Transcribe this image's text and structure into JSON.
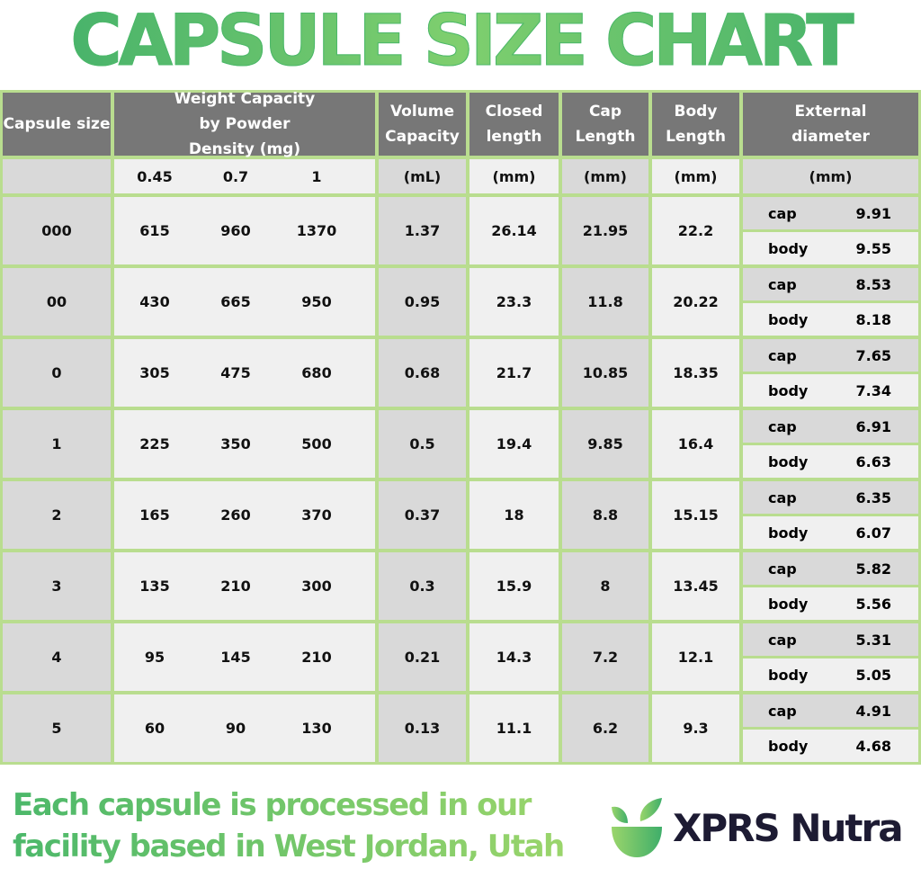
{
  "title": "CAPSULE SIZE CHART",
  "headers": {
    "size": "Capsule size",
    "weight": "Weight Capacity by Powder Density (mg)",
    "volume": "Volume Capacity",
    "closed": "Closed length",
    "cap": "Cap Length",
    "body": "Body Length",
    "ext": "External diameter"
  },
  "units": {
    "densities": [
      "0.45",
      "0.7",
      "1"
    ],
    "volume": "(mL)",
    "closed": "(mm)",
    "cap": "(mm)",
    "body": "(mm)",
    "ext": "(mm)"
  },
  "ext_labels": {
    "cap": "cap",
    "body": "body"
  },
  "rows": [
    {
      "size": "000",
      "w": [
        "615",
        "960",
        "1370"
      ],
      "vol": "1.37",
      "closed": "26.14",
      "cap": "21.95",
      "body": "22.2",
      "ext_cap": "9.91",
      "ext_body": "9.55"
    },
    {
      "size": "00",
      "w": [
        "430",
        "665",
        "950"
      ],
      "vol": "0.95",
      "closed": "23.3",
      "cap": "11.8",
      "body": "20.22",
      "ext_cap": "8.53",
      "ext_body": "8.18"
    },
    {
      "size": "0",
      "w": [
        "305",
        "475",
        "680"
      ],
      "vol": "0.68",
      "closed": "21.7",
      "cap": "10.85",
      "body": "18.35",
      "ext_cap": "7.65",
      "ext_body": "7.34"
    },
    {
      "size": "1",
      "w": [
        "225",
        "350",
        "500"
      ],
      "vol": "0.5",
      "closed": "19.4",
      "cap": "9.85",
      "body": "16.4",
      "ext_cap": "6.91",
      "ext_body": "6.63"
    },
    {
      "size": "2",
      "w": [
        "165",
        "260",
        "370"
      ],
      "vol": "0.37",
      "closed": "18",
      "cap": "8.8",
      "body": "15.15",
      "ext_cap": "6.35",
      "ext_body": "6.07"
    },
    {
      "size": "3",
      "w": [
        "135",
        "210",
        "300"
      ],
      "vol": "0.3",
      "closed": "15.9",
      "cap": "8",
      "body": "13.45",
      "ext_cap": "5.82",
      "ext_body": "5.56"
    },
    {
      "size": "4",
      "w": [
        "95",
        "145",
        "210"
      ],
      "vol": "0.21",
      "closed": "14.3",
      "cap": "7.2",
      "body": "12.1",
      "ext_cap": "5.31",
      "ext_body": "5.05"
    },
    {
      "size": "5",
      "w": [
        "60",
        "90",
        "130"
      ],
      "vol": "0.13",
      "closed": "11.1",
      "cap": "6.2",
      "body": "9.3",
      "ext_cap": "4.91",
      "ext_body": "4.68"
    }
  ],
  "footer": {
    "line1": "Each capsule is processed in our",
    "line2": "facility based in West Jordan, Utah"
  },
  "brand": "XPRS Nutra",
  "colors": {
    "border": "#b9dd8f",
    "header": "#777777",
    "accent": "#4cb86a",
    "brand_text": "#1d1b33"
  }
}
